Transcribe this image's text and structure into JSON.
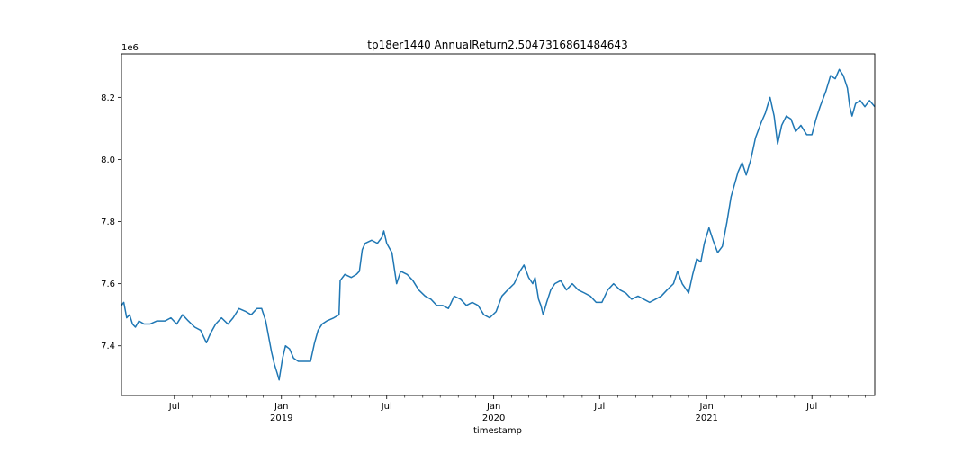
{
  "chart_data": {
    "type": "line",
    "title": "tp18er1440 AnnualReturn2.5047316861484643",
    "xlabel": "timestamp",
    "ylabel": "",
    "y_offset_text": "1e6",
    "y_multiplier": 1000000,
    "ylim": [
      7.24,
      8.34
    ],
    "xlim": [
      "2018-04-01",
      "2021-10-17"
    ],
    "y_ticks": [
      7.4,
      7.6,
      7.8,
      8.0,
      8.2
    ],
    "y_tick_labels": [
      "7.4",
      "7.6",
      "7.8",
      "8.0",
      "8.2"
    ],
    "x_major_ticks": [
      {
        "date": "2018-07-01",
        "label": "Jul",
        "sublabel": ""
      },
      {
        "date": "2019-01-01",
        "label": "Jan",
        "sublabel": "2019"
      },
      {
        "date": "2019-07-01",
        "label": "Jul",
        "sublabel": ""
      },
      {
        "date": "2020-01-01",
        "label": "Jan",
        "sublabel": "2020"
      },
      {
        "date": "2020-07-01",
        "label": "Jul",
        "sublabel": ""
      },
      {
        "date": "2021-01-01",
        "label": "Jan",
        "sublabel": "2021"
      },
      {
        "date": "2021-07-01",
        "label": "Jul",
        "sublabel": ""
      }
    ],
    "x_minor_ticks": [
      "2018-05-01",
      "2018-06-01",
      "2018-08-01",
      "2018-09-01",
      "2018-10-01",
      "2018-11-01",
      "2018-12-01",
      "2019-02-01",
      "2019-03-01",
      "2019-04-01",
      "2019-05-01",
      "2019-06-01",
      "2019-08-01",
      "2019-09-01",
      "2019-10-01",
      "2019-11-01",
      "2019-12-01",
      "2020-02-01",
      "2020-03-01",
      "2020-04-01",
      "2020-05-01",
      "2020-06-01",
      "2020-08-01",
      "2020-09-01",
      "2020-10-01",
      "2020-11-01",
      "2020-12-01",
      "2021-02-01",
      "2021-03-01",
      "2021-04-01",
      "2021-05-01",
      "2021-06-01",
      "2021-08-01",
      "2021-09-01",
      "2021-10-01"
    ],
    "grid": false,
    "series": [
      {
        "name": "",
        "color": "#1f77b4",
        "points": [
          [
            "2018-04-01",
            7.53
          ],
          [
            "2018-04-05",
            7.54
          ],
          [
            "2018-04-10",
            7.49
          ],
          [
            "2018-04-15",
            7.5
          ],
          [
            "2018-04-20",
            7.47
          ],
          [
            "2018-04-25",
            7.46
          ],
          [
            "2018-05-01",
            7.48
          ],
          [
            "2018-05-10",
            7.47
          ],
          [
            "2018-05-20",
            7.47
          ],
          [
            "2018-06-01",
            7.48
          ],
          [
            "2018-06-15",
            7.48
          ],
          [
            "2018-06-25",
            7.49
          ],
          [
            "2018-07-05",
            7.47
          ],
          [
            "2018-07-15",
            7.5
          ],
          [
            "2018-07-25",
            7.48
          ],
          [
            "2018-08-05",
            7.46
          ],
          [
            "2018-08-15",
            7.45
          ],
          [
            "2018-08-25",
            7.41
          ],
          [
            "2018-09-01",
            7.44
          ],
          [
            "2018-09-10",
            7.47
          ],
          [
            "2018-09-20",
            7.49
          ],
          [
            "2018-10-01",
            7.47
          ],
          [
            "2018-10-10",
            7.49
          ],
          [
            "2018-10-20",
            7.52
          ],
          [
            "2018-11-01",
            7.51
          ],
          [
            "2018-11-10",
            7.5
          ],
          [
            "2018-11-20",
            7.52
          ],
          [
            "2018-11-28",
            7.52
          ],
          [
            "2018-12-05",
            7.48
          ],
          [
            "2018-12-10",
            7.43
          ],
          [
            "2018-12-15",
            7.38
          ],
          [
            "2018-12-20",
            7.34
          ],
          [
            "2018-12-25",
            7.31
          ],
          [
            "2018-12-28",
            7.29
          ],
          [
            "2019-01-03",
            7.36
          ],
          [
            "2019-01-08",
            7.4
          ],
          [
            "2019-01-15",
            7.39
          ],
          [
            "2019-01-22",
            7.36
          ],
          [
            "2019-01-30",
            7.35
          ],
          [
            "2019-02-10",
            7.35
          ],
          [
            "2019-02-20",
            7.35
          ],
          [
            "2019-02-27",
            7.41
          ],
          [
            "2019-03-05",
            7.45
          ],
          [
            "2019-03-12",
            7.47
          ],
          [
            "2019-03-20",
            7.48
          ],
          [
            "2019-04-01",
            7.49
          ],
          [
            "2019-04-10",
            7.5
          ],
          [
            "2019-04-12",
            7.61
          ],
          [
            "2019-04-20",
            7.63
          ],
          [
            "2019-05-01",
            7.62
          ],
          [
            "2019-05-10",
            7.63
          ],
          [
            "2019-05-15",
            7.64
          ],
          [
            "2019-05-20",
            7.71
          ],
          [
            "2019-05-25",
            7.73
          ],
          [
            "2019-06-05",
            7.74
          ],
          [
            "2019-06-15",
            7.73
          ],
          [
            "2019-06-23",
            7.75
          ],
          [
            "2019-06-26",
            7.77
          ],
          [
            "2019-07-01",
            7.73
          ],
          [
            "2019-07-10",
            7.7
          ],
          [
            "2019-07-18",
            7.6
          ],
          [
            "2019-07-25",
            7.64
          ],
          [
            "2019-08-05",
            7.63
          ],
          [
            "2019-08-15",
            7.61
          ],
          [
            "2019-08-25",
            7.58
          ],
          [
            "2019-09-05",
            7.56
          ],
          [
            "2019-09-15",
            7.55
          ],
          [
            "2019-09-25",
            7.53
          ],
          [
            "2019-10-05",
            7.53
          ],
          [
            "2019-10-15",
            7.52
          ],
          [
            "2019-10-25",
            7.56
          ],
          [
            "2019-11-05",
            7.55
          ],
          [
            "2019-11-15",
            7.53
          ],
          [
            "2019-11-25",
            7.54
          ],
          [
            "2019-12-05",
            7.53
          ],
          [
            "2019-12-15",
            7.5
          ],
          [
            "2019-12-25",
            7.49
          ],
          [
            "2020-01-05",
            7.51
          ],
          [
            "2020-01-15",
            7.56
          ],
          [
            "2020-01-25",
            7.58
          ],
          [
            "2020-02-05",
            7.6
          ],
          [
            "2020-02-15",
            7.64
          ],
          [
            "2020-02-22",
            7.66
          ],
          [
            "2020-03-01",
            7.62
          ],
          [
            "2020-03-08",
            7.6
          ],
          [
            "2020-03-12",
            7.62
          ],
          [
            "2020-03-18",
            7.55
          ],
          [
            "2020-03-22",
            7.53
          ],
          [
            "2020-03-26",
            7.5
          ],
          [
            "2020-04-01",
            7.54
          ],
          [
            "2020-04-08",
            7.58
          ],
          [
            "2020-04-15",
            7.6
          ],
          [
            "2020-04-25",
            7.61
          ],
          [
            "2020-05-05",
            7.58
          ],
          [
            "2020-05-15",
            7.6
          ],
          [
            "2020-05-25",
            7.58
          ],
          [
            "2020-06-05",
            7.57
          ],
          [
            "2020-06-15",
            7.56
          ],
          [
            "2020-06-25",
            7.54
          ],
          [
            "2020-07-05",
            7.54
          ],
          [
            "2020-07-15",
            7.58
          ],
          [
            "2020-07-25",
            7.6
          ],
          [
            "2020-08-05",
            7.58
          ],
          [
            "2020-08-15",
            7.57
          ],
          [
            "2020-08-25",
            7.55
          ],
          [
            "2020-09-05",
            7.56
          ],
          [
            "2020-09-15",
            7.55
          ],
          [
            "2020-09-25",
            7.54
          ],
          [
            "2020-10-05",
            7.55
          ],
          [
            "2020-10-15",
            7.56
          ],
          [
            "2020-10-25",
            7.58
          ],
          [
            "2020-11-05",
            7.6
          ],
          [
            "2020-11-12",
            7.64
          ],
          [
            "2020-11-20",
            7.6
          ],
          [
            "2020-12-01",
            7.57
          ],
          [
            "2020-12-08",
            7.63
          ],
          [
            "2020-12-15",
            7.68
          ],
          [
            "2020-12-22",
            7.67
          ],
          [
            "2020-12-28",
            7.73
          ],
          [
            "2021-01-05",
            7.78
          ],
          [
            "2021-01-12",
            7.74
          ],
          [
            "2021-01-20",
            7.7
          ],
          [
            "2021-01-28",
            7.72
          ],
          [
            "2021-02-05",
            7.8
          ],
          [
            "2021-02-12",
            7.88
          ],
          [
            "2021-02-18",
            7.92
          ],
          [
            "2021-02-24",
            7.96
          ],
          [
            "2021-03-03",
            7.99
          ],
          [
            "2021-03-10",
            7.95
          ],
          [
            "2021-03-18",
            8.0
          ],
          [
            "2021-03-26",
            8.07
          ],
          [
            "2021-04-05",
            8.12
          ],
          [
            "2021-04-12",
            8.15
          ],
          [
            "2021-04-20",
            8.2
          ],
          [
            "2021-04-27",
            8.14
          ],
          [
            "2021-05-03",
            8.05
          ],
          [
            "2021-05-10",
            8.11
          ],
          [
            "2021-05-18",
            8.14
          ],
          [
            "2021-05-26",
            8.13
          ],
          [
            "2021-06-03",
            8.09
          ],
          [
            "2021-06-12",
            8.11
          ],
          [
            "2021-06-22",
            8.08
          ],
          [
            "2021-07-01",
            8.08
          ],
          [
            "2021-07-08",
            8.13
          ],
          [
            "2021-07-15",
            8.17
          ],
          [
            "2021-07-25",
            8.22
          ],
          [
            "2021-08-02",
            8.27
          ],
          [
            "2021-08-10",
            8.26
          ],
          [
            "2021-08-17",
            8.29
          ],
          [
            "2021-08-24",
            8.27
          ],
          [
            "2021-08-31",
            8.23
          ],
          [
            "2021-09-04",
            8.17
          ],
          [
            "2021-09-08",
            8.14
          ],
          [
            "2021-09-14",
            8.18
          ],
          [
            "2021-09-22",
            8.19
          ],
          [
            "2021-09-30",
            8.17
          ],
          [
            "2021-10-08",
            8.19
          ],
          [
            "2021-10-17",
            8.17
          ]
        ]
      }
    ]
  }
}
